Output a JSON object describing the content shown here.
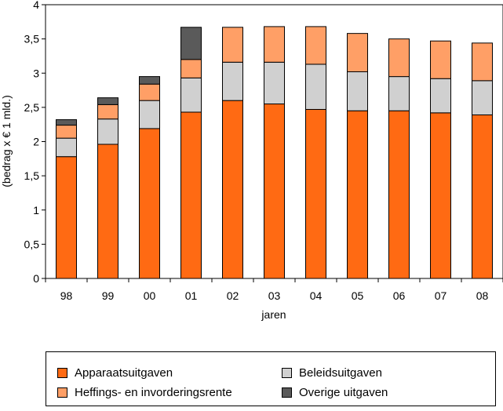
{
  "chart_data": {
    "type": "bar",
    "stacked": true,
    "categories": [
      "98",
      "99",
      "00",
      "01",
      "02",
      "03",
      "04",
      "05",
      "06",
      "07",
      "08"
    ],
    "series": [
      {
        "name": "Apparaatsuitgaven",
        "color": "#ff6a13",
        "values": [
          1.78,
          1.96,
          2.19,
          2.43,
          2.6,
          2.55,
          2.47,
          2.45,
          2.45,
          2.42,
          2.39
        ]
      },
      {
        "name": "Beleidsuitgaven",
        "color": "#d0d0d0",
        "values": [
          0.27,
          0.37,
          0.41,
          0.5,
          0.56,
          0.61,
          0.66,
          0.57,
          0.5,
          0.5,
          0.5
        ]
      },
      {
        "name": "Heffings- en invorderingsrente",
        "color": "#ff9f66",
        "values": [
          0.19,
          0.21,
          0.24,
          0.27,
          0.51,
          0.52,
          0.55,
          0.56,
          0.55,
          0.55,
          0.55
        ]
      },
      {
        "name": "Overige uitgaven",
        "color": "#5a5a5a",
        "values": [
          0.08,
          0.1,
          0.11,
          0.47,
          0.0,
          0.0,
          0.0,
          0.0,
          0.0,
          0.0,
          0.0
        ]
      }
    ],
    "legend_order": [
      "Apparaatsuitgaven",
      "Beleidsuitgaven",
      "Heffings- en invorderingsrente",
      "Overige uitgaven"
    ],
    "y_ticks": [
      "0",
      "0,5",
      "1",
      "1,5",
      "2",
      "2,5",
      "3",
      "3,5",
      "4"
    ],
    "ylim": [
      0,
      4
    ],
    "xlabel": "jaren",
    "ylabel": "(bedrag x € 1 mld.)",
    "grid": false,
    "legend_position": "bottom"
  }
}
